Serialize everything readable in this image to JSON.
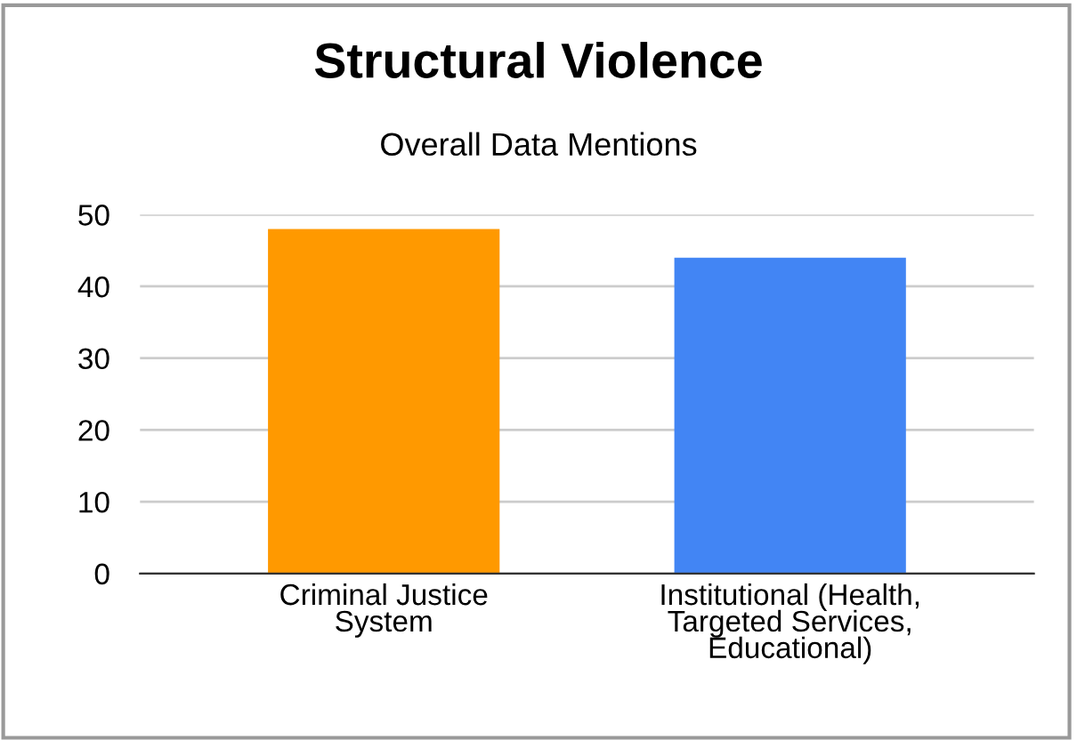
{
  "chart_data": {
    "type": "bar",
    "title": "Structural Violence",
    "subtitle": "Overall Data Mentions",
    "categories": [
      "Criminal Justice\nSystem",
      "Institutional (Health,\nTargeted Services,\nEducational)"
    ],
    "values": [
      48,
      44
    ],
    "colors": [
      "#ff9900",
      "#4285f4"
    ],
    "ylim": [
      0,
      50
    ],
    "yticks": [
      0,
      10,
      20,
      30,
      40,
      50
    ],
    "grid": "y",
    "legend": false
  }
}
